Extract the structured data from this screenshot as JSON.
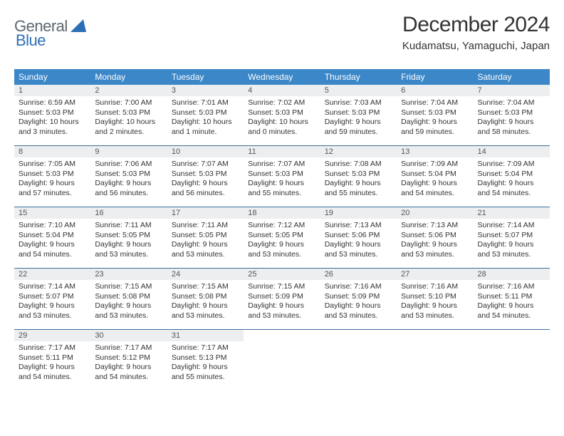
{
  "logo": {
    "word1": "General",
    "word2": "Blue"
  },
  "title": "December 2024",
  "location": "Kudamatsu, Yamaguchi, Japan",
  "colors": {
    "header_bg": "#3b87c8",
    "header_fg": "#ffffff",
    "daynum_bg": "#eceeef",
    "row_divider": "#3b6fa0",
    "logo_gray": "#5a6770",
    "logo_blue": "#2d6fb7",
    "text": "#333333",
    "page_bg": "#ffffff"
  },
  "typography": {
    "title_fontsize": 30,
    "subtitle_fontsize": 15,
    "weekday_fontsize": 12,
    "daynum_fontsize": 11,
    "body_fontsize": 10.5
  },
  "weekdays": [
    "Sunday",
    "Monday",
    "Tuesday",
    "Wednesday",
    "Thursday",
    "Friday",
    "Saturday"
  ],
  "weeks": [
    [
      {
        "n": "1",
        "sr": "6:59 AM",
        "ss": "5:03 PM",
        "dl": "10 hours and 3 minutes."
      },
      {
        "n": "2",
        "sr": "7:00 AM",
        "ss": "5:03 PM",
        "dl": "10 hours and 2 minutes."
      },
      {
        "n": "3",
        "sr": "7:01 AM",
        "ss": "5:03 PM",
        "dl": "10 hours and 1 minute."
      },
      {
        "n": "4",
        "sr": "7:02 AM",
        "ss": "5:03 PM",
        "dl": "10 hours and 0 minutes."
      },
      {
        "n": "5",
        "sr": "7:03 AM",
        "ss": "5:03 PM",
        "dl": "9 hours and 59 minutes."
      },
      {
        "n": "6",
        "sr": "7:04 AM",
        "ss": "5:03 PM",
        "dl": "9 hours and 59 minutes."
      },
      {
        "n": "7",
        "sr": "7:04 AM",
        "ss": "5:03 PM",
        "dl": "9 hours and 58 minutes."
      }
    ],
    [
      {
        "n": "8",
        "sr": "7:05 AM",
        "ss": "5:03 PM",
        "dl": "9 hours and 57 minutes."
      },
      {
        "n": "9",
        "sr": "7:06 AM",
        "ss": "5:03 PM",
        "dl": "9 hours and 56 minutes."
      },
      {
        "n": "10",
        "sr": "7:07 AM",
        "ss": "5:03 PM",
        "dl": "9 hours and 56 minutes."
      },
      {
        "n": "11",
        "sr": "7:07 AM",
        "ss": "5:03 PM",
        "dl": "9 hours and 55 minutes."
      },
      {
        "n": "12",
        "sr": "7:08 AM",
        "ss": "5:03 PM",
        "dl": "9 hours and 55 minutes."
      },
      {
        "n": "13",
        "sr": "7:09 AM",
        "ss": "5:04 PM",
        "dl": "9 hours and 54 minutes."
      },
      {
        "n": "14",
        "sr": "7:09 AM",
        "ss": "5:04 PM",
        "dl": "9 hours and 54 minutes."
      }
    ],
    [
      {
        "n": "15",
        "sr": "7:10 AM",
        "ss": "5:04 PM",
        "dl": "9 hours and 54 minutes."
      },
      {
        "n": "16",
        "sr": "7:11 AM",
        "ss": "5:05 PM",
        "dl": "9 hours and 53 minutes."
      },
      {
        "n": "17",
        "sr": "7:11 AM",
        "ss": "5:05 PM",
        "dl": "9 hours and 53 minutes."
      },
      {
        "n": "18",
        "sr": "7:12 AM",
        "ss": "5:05 PM",
        "dl": "9 hours and 53 minutes."
      },
      {
        "n": "19",
        "sr": "7:13 AM",
        "ss": "5:06 PM",
        "dl": "9 hours and 53 minutes."
      },
      {
        "n": "20",
        "sr": "7:13 AM",
        "ss": "5:06 PM",
        "dl": "9 hours and 53 minutes."
      },
      {
        "n": "21",
        "sr": "7:14 AM",
        "ss": "5:07 PM",
        "dl": "9 hours and 53 minutes."
      }
    ],
    [
      {
        "n": "22",
        "sr": "7:14 AM",
        "ss": "5:07 PM",
        "dl": "9 hours and 53 minutes."
      },
      {
        "n": "23",
        "sr": "7:15 AM",
        "ss": "5:08 PM",
        "dl": "9 hours and 53 minutes."
      },
      {
        "n": "24",
        "sr": "7:15 AM",
        "ss": "5:08 PM",
        "dl": "9 hours and 53 minutes."
      },
      {
        "n": "25",
        "sr": "7:15 AM",
        "ss": "5:09 PM",
        "dl": "9 hours and 53 minutes."
      },
      {
        "n": "26",
        "sr": "7:16 AM",
        "ss": "5:09 PM",
        "dl": "9 hours and 53 minutes."
      },
      {
        "n": "27",
        "sr": "7:16 AM",
        "ss": "5:10 PM",
        "dl": "9 hours and 53 minutes."
      },
      {
        "n": "28",
        "sr": "7:16 AM",
        "ss": "5:11 PM",
        "dl": "9 hours and 54 minutes."
      }
    ],
    [
      {
        "n": "29",
        "sr": "7:17 AM",
        "ss": "5:11 PM",
        "dl": "9 hours and 54 minutes."
      },
      {
        "n": "30",
        "sr": "7:17 AM",
        "ss": "5:12 PM",
        "dl": "9 hours and 54 minutes."
      },
      {
        "n": "31",
        "sr": "7:17 AM",
        "ss": "5:13 PM",
        "dl": "9 hours and 55 minutes."
      },
      null,
      null,
      null,
      null
    ]
  ],
  "labels": {
    "sunrise": "Sunrise:",
    "sunset": "Sunset:",
    "daylight": "Daylight:"
  }
}
